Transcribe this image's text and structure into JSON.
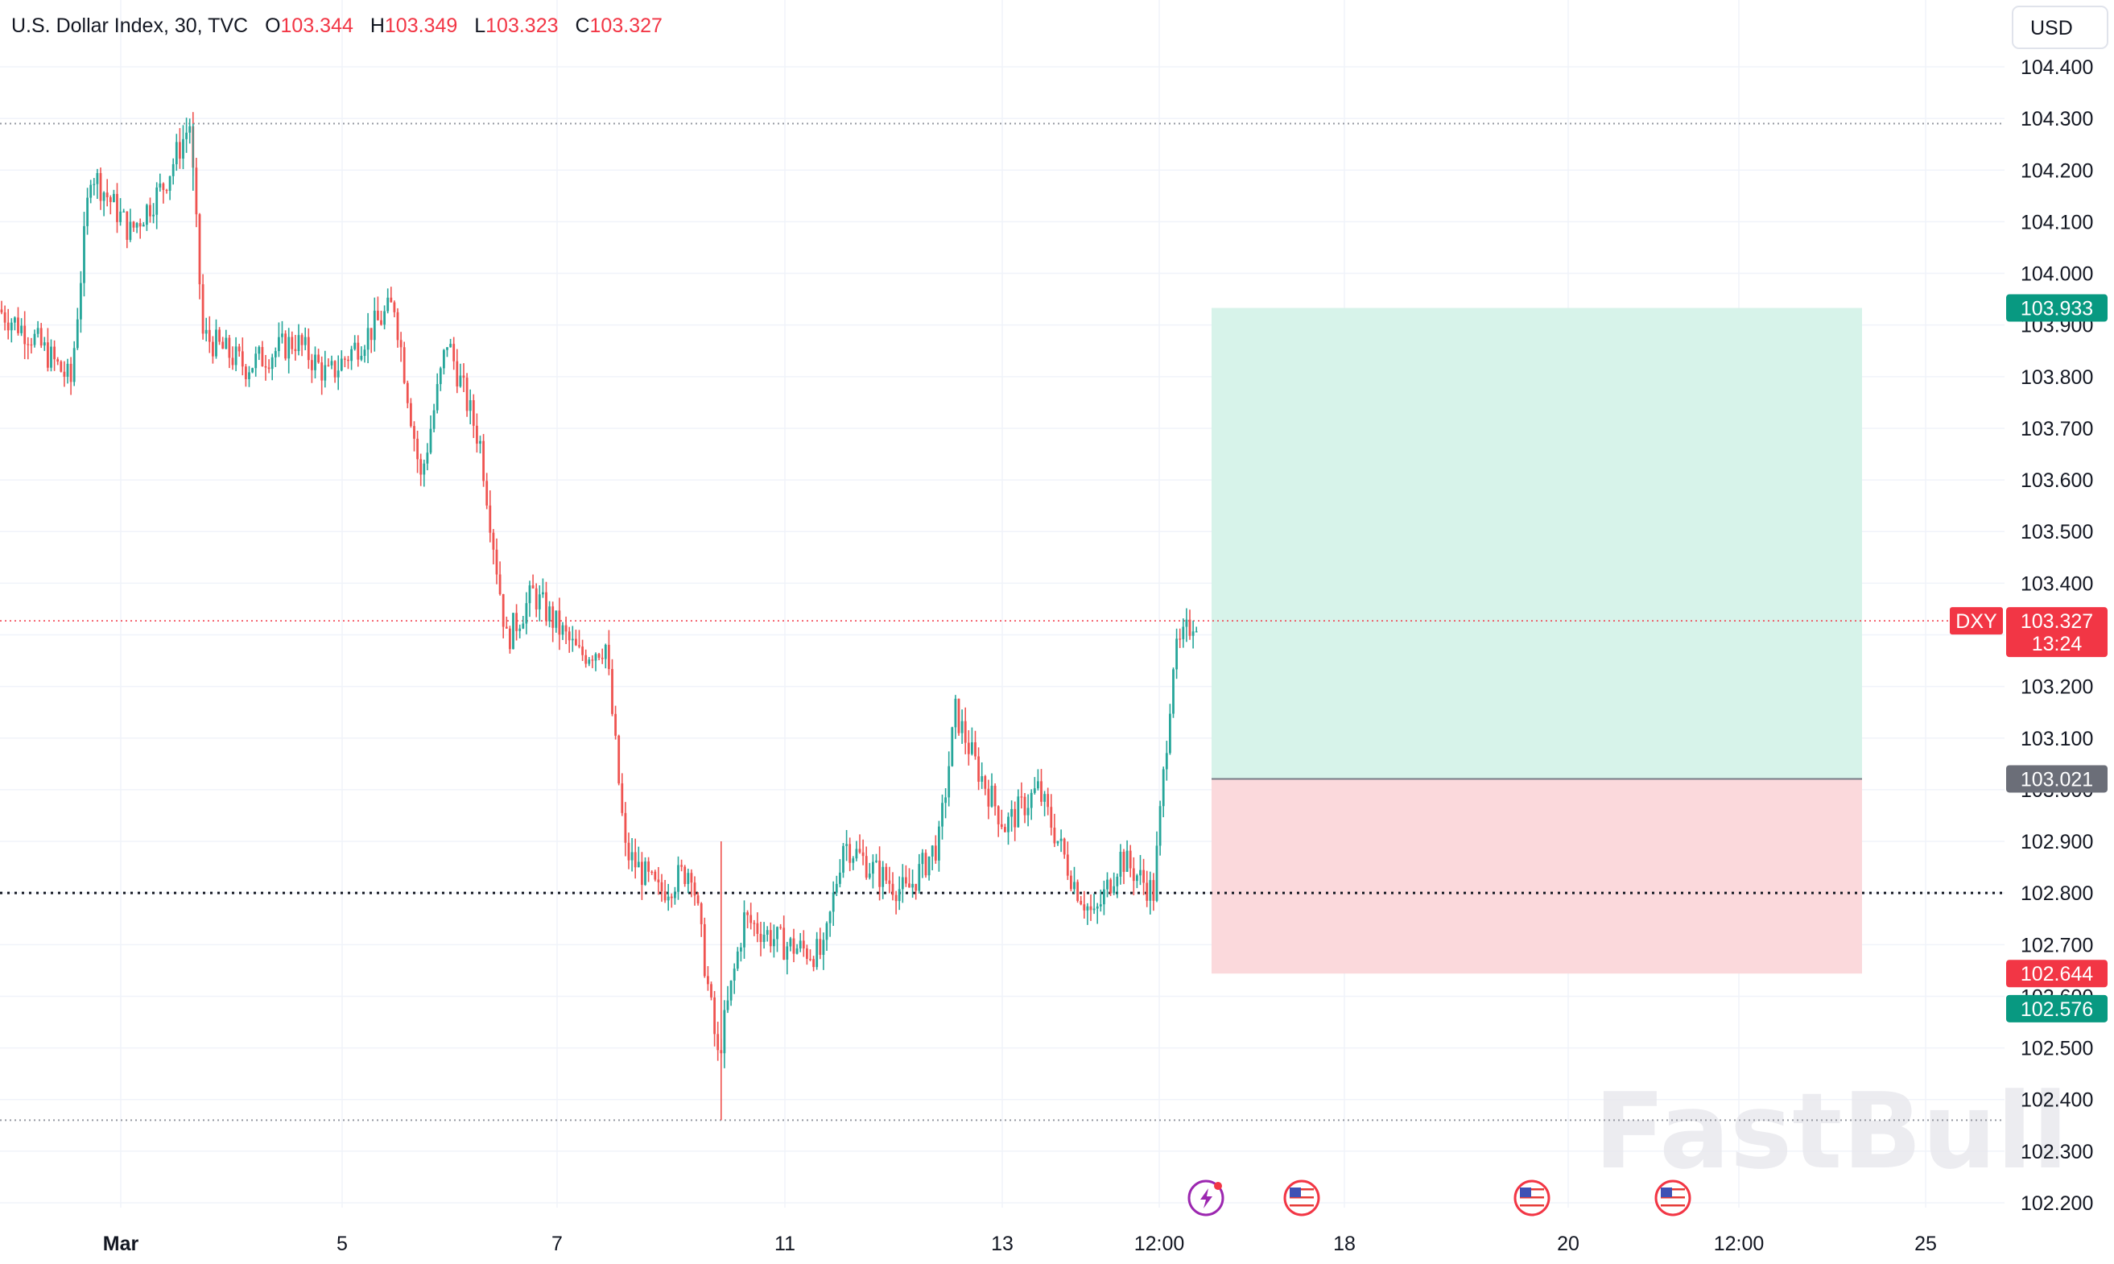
{
  "header": {
    "title": "U.S. Dollar Index, 30, TVC",
    "o_label": "O",
    "o_value": "103.344",
    "h_label": "H",
    "h_value": "103.349",
    "l_label": "L",
    "l_value": "103.323",
    "c_label": "C",
    "c_value": "103.327"
  },
  "currency": "USD",
  "watermark": "FastBull",
  "colors": {
    "up": "#26a69a",
    "down": "#ef5350",
    "profit_zone": "#d7f3ea",
    "loss_zone": "#fbd9dc",
    "entry_badge": "#6b6e78",
    "price_red": "#f23645",
    "price_green": "#089981",
    "text": "#131722",
    "grid": "#f0f3fa"
  },
  "chart_data": {
    "type": "candlestick",
    "symbol": "DXY",
    "timeframe": "30",
    "ylim": [
      102.15,
      104.52
    ],
    "y_ticks": [
      "104.400",
      "104.300",
      "104.200",
      "104.100",
      "104.000",
      "103.900",
      "103.800",
      "103.700",
      "103.600",
      "103.500",
      "103.400",
      "103.300",
      "103.200",
      "103.100",
      "103.000",
      "102.900",
      "102.800",
      "102.700",
      "102.600",
      "102.500",
      "102.400",
      "102.300",
      "102.200"
    ],
    "x_ticks": [
      "Mar",
      "5",
      "7",
      "11",
      "13",
      "12:00",
      "18",
      "20",
      "12:00",
      "25"
    ],
    "price_path": [
      {
        "t": 0,
        "p": 103.93
      },
      {
        "t": 10,
        "p": 103.88
      },
      {
        "t": 22,
        "p": 103.79
      },
      {
        "t": 28,
        "p": 104.2
      },
      {
        "t": 40,
        "p": 104.08
      },
      {
        "t": 50,
        "p": 104.17
      },
      {
        "t": 58,
        "p": 104.29
      },
      {
        "t": 62,
        "p": 103.88
      },
      {
        "t": 75,
        "p": 103.82
      },
      {
        "t": 90,
        "p": 103.87
      },
      {
        "t": 100,
        "p": 103.8
      },
      {
        "t": 110,
        "p": 103.87
      },
      {
        "t": 120,
        "p": 103.94
      },
      {
        "t": 128,
        "p": 103.6
      },
      {
        "t": 136,
        "p": 103.87
      },
      {
        "t": 146,
        "p": 103.67
      },
      {
        "t": 154,
        "p": 103.29
      },
      {
        "t": 162,
        "p": 103.38
      },
      {
        "t": 176,
        "p": 103.26
      },
      {
        "t": 184,
        "p": 103.28
      },
      {
        "t": 190,
        "p": 102.88
      },
      {
        "t": 200,
        "p": 102.8
      },
      {
        "t": 210,
        "p": 102.85
      },
      {
        "t": 218,
        "p": 102.48
      },
      {
        "t": 226,
        "p": 102.75
      },
      {
        "t": 238,
        "p": 102.7
      },
      {
        "t": 250,
        "p": 102.68
      },
      {
        "t": 256,
        "p": 102.9
      },
      {
        "t": 266,
        "p": 102.84
      },
      {
        "t": 275,
        "p": 102.8
      },
      {
        "t": 285,
        "p": 102.9
      },
      {
        "t": 290,
        "p": 103.15
      },
      {
        "t": 296,
        "p": 103.05
      },
      {
        "t": 305,
        "p": 102.93
      },
      {
        "t": 315,
        "p": 103.0
      },
      {
        "t": 326,
        "p": 102.82
      },
      {
        "t": 332,
        "p": 102.75
      },
      {
        "t": 340,
        "p": 102.87
      },
      {
        "t": 350,
        "p": 102.8
      },
      {
        "t": 356,
        "p": 103.25
      },
      {
        "t": 362,
        "p": 103.33
      }
    ],
    "series_range_index": [
      0,
      363
    ],
    "swing_high": 104.29,
    "swing_low": 102.36,
    "support_level": 102.8,
    "current_price": "103.327",
    "countdown": "13:24",
    "position": {
      "entry": "103.021",
      "target": "103.933",
      "stop": "102.644",
      "extra_level": "102.576"
    },
    "event_icons": [
      "lightning-event-icon",
      "us-flag-icon",
      "us-flag-icon",
      "us-flag-icon"
    ]
  }
}
